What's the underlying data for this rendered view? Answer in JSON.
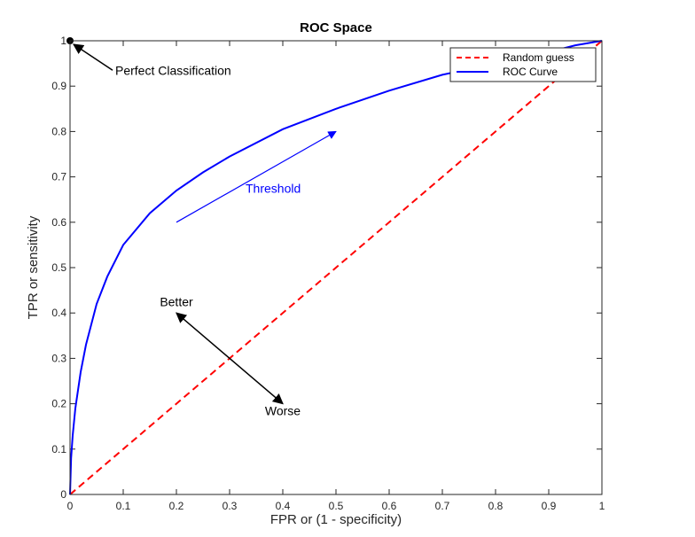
{
  "chart_data": {
    "type": "line",
    "title": "ROC Space",
    "xlabel": "FPR or (1 - specificity)",
    "ylabel": "TPR or sensitivity",
    "xlim": [
      0,
      1
    ],
    "ylim": [
      0,
      1
    ],
    "xticks": [
      "0",
      "0.1",
      "0.2",
      "0.3",
      "0.4",
      "0.5",
      "0.6",
      "0.7",
      "0.8",
      "0.9",
      "1"
    ],
    "yticks": [
      "0",
      "0.1",
      "0.2",
      "0.3",
      "0.4",
      "0.5",
      "0.6",
      "0.7",
      "0.8",
      "0.9",
      "1"
    ],
    "grid": false,
    "legend_position": "top-right",
    "series": [
      {
        "name": "Random guess",
        "color": "#ff0000",
        "dash": "dashed",
        "x": [
          0,
          1
        ],
        "y": [
          0,
          1
        ]
      },
      {
        "name": "ROC Curve",
        "color": "#0000ff",
        "dash": "solid",
        "x": [
          0,
          0.002,
          0.005,
          0.01,
          0.02,
          0.03,
          0.05,
          0.07,
          0.1,
          0.15,
          0.2,
          0.25,
          0.3,
          0.4,
          0.5,
          0.6,
          0.7,
          0.8,
          0.9,
          0.95,
          1.0
        ],
        "y": [
          0,
          0.08,
          0.13,
          0.19,
          0.27,
          0.33,
          0.42,
          0.48,
          0.55,
          0.62,
          0.67,
          0.71,
          0.745,
          0.805,
          0.85,
          0.89,
          0.925,
          0.95,
          0.975,
          0.99,
          1.0
        ]
      }
    ],
    "annotations": {
      "perfect": {
        "label": "Perfect Classification",
        "point": [
          0,
          1
        ],
        "arrow_from": [
          0.08,
          0.935
        ],
        "label_at": [
          0.085,
          0.925
        ]
      },
      "threshold": {
        "label": "Threshold",
        "color": "#0000ff",
        "arrow_from": [
          0.2,
          0.6
        ],
        "arrow_to": [
          0.5,
          0.8
        ],
        "label_at": [
          0.33,
          0.665
        ]
      },
      "better": {
        "label": "Better",
        "arrow_from": [
          0.3,
          0.3
        ],
        "arrow_to": [
          0.2,
          0.4
        ],
        "label_at": [
          0.2,
          0.415
        ]
      },
      "worse": {
        "label": "Worse",
        "arrow_from": [
          0.3,
          0.3
        ],
        "arrow_to": [
          0.4,
          0.2
        ],
        "label_at": [
          0.4,
          0.175
        ]
      }
    }
  }
}
